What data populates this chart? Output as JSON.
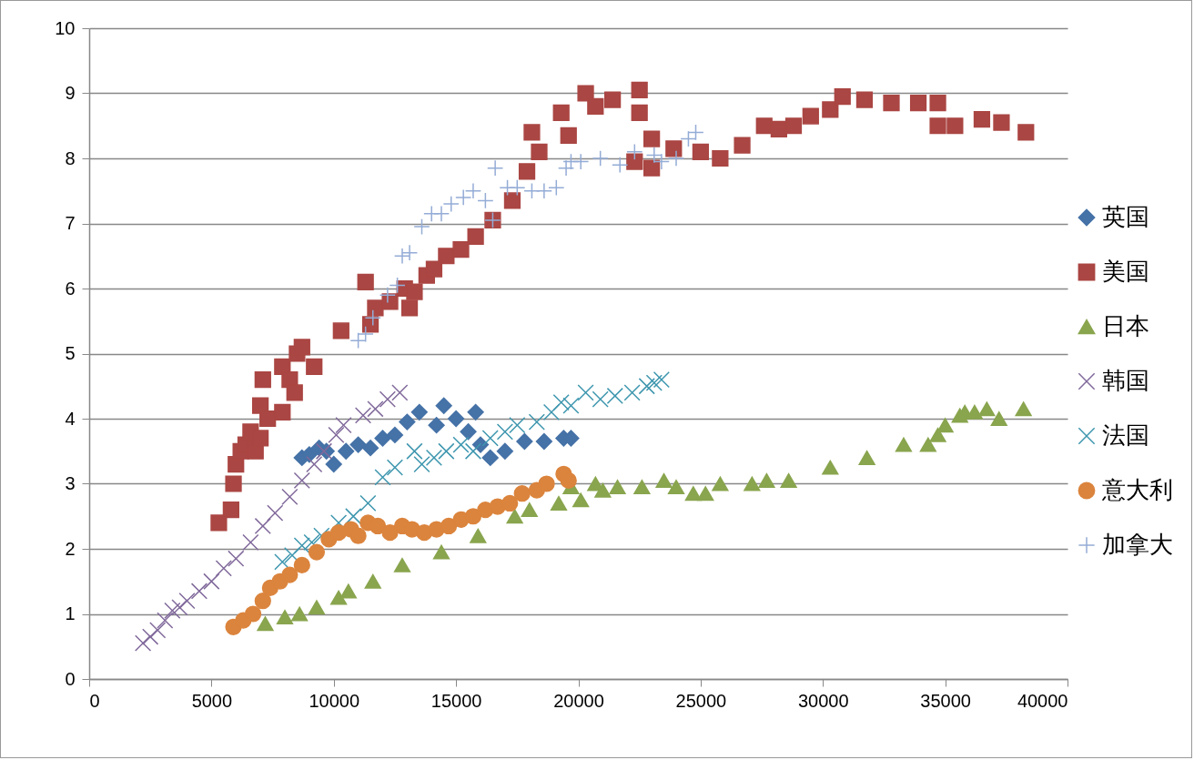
{
  "chart_data": {
    "type": "scatter",
    "xlim": [
      0,
      40000
    ],
    "xticks": [
      0,
      5000,
      10000,
      15000,
      20000,
      25000,
      30000,
      35000,
      40000
    ],
    "ylim": [
      0,
      10
    ],
    "yticks": [
      0,
      1,
      2,
      3,
      4,
      5,
      6,
      7,
      8,
      9,
      10
    ],
    "grid": "y",
    "legend": "right",
    "series": [
      {
        "name": "英国",
        "color": "#4572a7",
        "marker": "diamond",
        "x": [
          8700,
          9000,
          9400,
          9700,
          10000,
          10500,
          11000,
          11500,
          12000,
          12500,
          13000,
          13500,
          14200,
          14500,
          15000,
          15500,
          15800,
          16000,
          16400,
          17000,
          17800,
          18600,
          19400,
          19700
        ],
        "values": [
          3.4,
          3.45,
          3.55,
          3.5,
          3.3,
          3.5,
          3.6,
          3.55,
          3.7,
          3.75,
          3.95,
          4.1,
          3.9,
          4.2,
          4.0,
          3.8,
          4.1,
          3.6,
          3.4,
          3.5,
          3.65,
          3.65,
          3.7,
          3.7
        ]
      },
      {
        "name": "美国",
        "color": "#aa4643",
        "marker": "square",
        "x": [
          5300,
          5800,
          5900,
          6000,
          6200,
          6400,
          6600,
          6800,
          7000,
          7000,
          7100,
          7300,
          7900,
          7900,
          8200,
          8400,
          8500,
          8700,
          9200,
          10300,
          11300,
          11500,
          11700,
          12300,
          12900,
          13100,
          13300,
          13800,
          14100,
          14600,
          15200,
          15800,
          16500,
          17300,
          17900,
          18100,
          18400,
          19300,
          19600,
          20300,
          20700,
          21400,
          22500,
          22500,
          23000,
          22300,
          23000,
          23900,
          25000,
          25800,
          26700,
          27600,
          28200,
          28800,
          29500,
          30300,
          30800,
          31700,
          32800,
          33900,
          34700,
          34700,
          35400,
          36500,
          37300,
          38300
        ],
        "values": [
          2.4,
          2.6,
          3.0,
          3.3,
          3.5,
          3.6,
          3.8,
          3.5,
          3.7,
          4.2,
          4.6,
          4.0,
          4.1,
          4.8,
          4.6,
          4.4,
          5.0,
          5.1,
          4.8,
          5.35,
          6.1,
          5.45,
          5.7,
          5.8,
          6.0,
          5.7,
          5.95,
          6.2,
          6.3,
          6.5,
          6.6,
          6.8,
          7.05,
          7.35,
          7.8,
          8.4,
          8.1,
          8.7,
          8.35,
          9.0,
          8.8,
          8.9,
          9.05,
          8.7,
          8.3,
          7.95,
          7.85,
          8.15,
          8.1,
          8.0,
          8.2,
          8.5,
          8.45,
          8.5,
          8.65,
          8.75,
          8.95,
          8.9,
          8.85,
          8.85,
          8.85,
          8.5,
          8.5,
          8.6,
          8.55,
          8.4
        ]
      },
      {
        "name": "日本",
        "color": "#89a54e",
        "marker": "triangle",
        "x": [
          7200,
          8000,
          8600,
          9300,
          10200,
          10600,
          11600,
          12800,
          14400,
          15900,
          17400,
          18000,
          19200,
          19700,
          20100,
          20700,
          21000,
          21600,
          22600,
          23500,
          24000,
          24700,
          25200,
          25800,
          27100,
          27700,
          28600,
          30300,
          31800,
          33300,
          34300,
          34700,
          35000,
          35600,
          35800,
          36200,
          36700,
          37200,
          38200
        ],
        "values": [
          0.85,
          0.95,
          1.0,
          1.1,
          1.25,
          1.35,
          1.5,
          1.75,
          1.95,
          2.2,
          2.5,
          2.6,
          2.7,
          2.95,
          2.75,
          3.0,
          2.9,
          2.95,
          2.95,
          3.05,
          2.95,
          2.85,
          2.85,
          3.0,
          3.0,
          3.05,
          3.05,
          3.25,
          3.4,
          3.6,
          3.6,
          3.75,
          3.9,
          4.05,
          4.1,
          4.1,
          4.15,
          4.0,
          4.15
        ]
      },
      {
        "name": "韩国",
        "color": "#80699b",
        "marker": "cross",
        "x": [
          2200,
          2500,
          2800,
          3100,
          3400,
          3700,
          4000,
          4500,
          5000,
          5500,
          6000,
          6600,
          7100,
          7600,
          8200,
          8700,
          9200,
          9600,
          10100,
          10400,
          11200,
          11700,
          12200,
          12700
        ],
        "values": [
          0.55,
          0.65,
          0.75,
          0.9,
          1.05,
          1.1,
          1.2,
          1.35,
          1.5,
          1.7,
          1.85,
          2.1,
          2.35,
          2.55,
          2.8,
          3.05,
          3.3,
          3.5,
          3.75,
          3.9,
          4.05,
          4.15,
          4.3,
          4.4
        ]
      },
      {
        "name": "法国",
        "color": "#3d96ae",
        "marker": "cross",
        "x": [
          7900,
          8300,
          8700,
          9100,
          9500,
          10200,
          10800,
          11400,
          12000,
          12500,
          13300,
          13600,
          14100,
          14600,
          15200,
          15700,
          16400,
          17000,
          17500,
          18300,
          18900,
          19300,
          19700,
          20300,
          20900,
          21500,
          22200,
          22800,
          23100,
          23400
        ],
        "values": [
          1.8,
          1.9,
          2.05,
          2.1,
          2.2,
          2.4,
          2.5,
          2.7,
          3.1,
          3.25,
          3.5,
          3.3,
          3.4,
          3.5,
          3.6,
          3.5,
          3.7,
          3.8,
          3.9,
          3.95,
          4.1,
          4.25,
          4.2,
          4.4,
          4.3,
          4.35,
          4.4,
          4.5,
          4.55,
          4.6
        ]
      },
      {
        "name": "意大利",
        "color": "#db843d",
        "marker": "circle",
        "x": [
          5900,
          6300,
          6700,
          7100,
          7400,
          7800,
          8200,
          8700,
          9300,
          9800,
          10200,
          10700,
          11000,
          11400,
          11800,
          12300,
          12800,
          13200,
          13700,
          14200,
          14700,
          15200,
          15700,
          16200,
          16700,
          17200,
          17700,
          18300,
          18700,
          19400,
          19600
        ],
        "values": [
          0.8,
          0.9,
          1.0,
          1.2,
          1.4,
          1.5,
          1.6,
          1.75,
          1.95,
          2.15,
          2.25,
          2.3,
          2.2,
          2.4,
          2.35,
          2.25,
          2.35,
          2.3,
          2.25,
          2.3,
          2.35,
          2.45,
          2.5,
          2.6,
          2.65,
          2.7,
          2.85,
          2.9,
          3.0,
          3.15,
          3.05
        ]
      },
      {
        "name": "加拿大",
        "color": "#94acd6",
        "marker": "plus",
        "x": [
          11000,
          11300,
          11600,
          12200,
          12600,
          12800,
          13100,
          13600,
          14000,
          14400,
          14800,
          15300,
          15700,
          16200,
          16600,
          16500,
          17100,
          17500,
          18100,
          18600,
          19100,
          19500,
          19700,
          20100,
          20900,
          21700,
          22300,
          23100,
          23400,
          24000,
          24500,
          24800
        ],
        "values": [
          5.2,
          5.3,
          5.55,
          5.9,
          6.05,
          6.5,
          6.55,
          6.95,
          7.15,
          7.15,
          7.3,
          7.4,
          7.5,
          7.35,
          7.85,
          7.05,
          7.55,
          7.55,
          7.5,
          7.5,
          7.55,
          7.85,
          7.95,
          7.95,
          8.0,
          7.9,
          8.1,
          8.05,
          7.95,
          8.0,
          8.3,
          8.4
        ]
      }
    ]
  }
}
